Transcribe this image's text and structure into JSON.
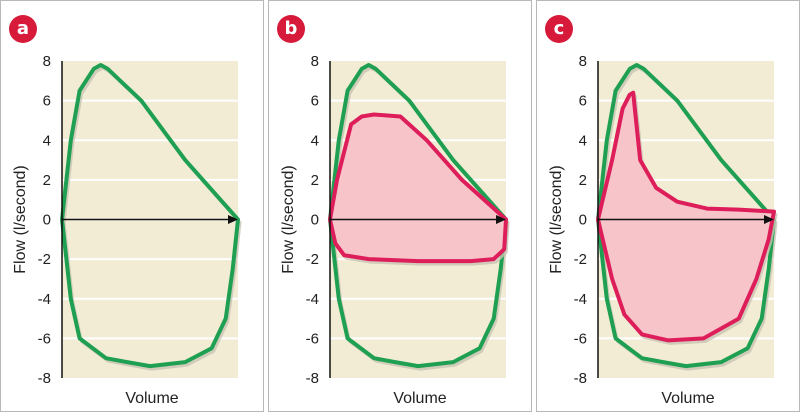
{
  "colors": {
    "plot_bg": "#f1ecd3",
    "grid": "#ffffff",
    "badge": "#d7193a",
    "normal_loop": "#1f9f52",
    "abnormal_loop": "#dd1e5a",
    "abnormal_fill": "#f7c5c9",
    "axis": "#111111"
  },
  "panels": [
    {
      "letter": "a"
    },
    {
      "letter": "b"
    },
    {
      "letter": "c"
    }
  ],
  "chart_data": [
    {
      "type": "line",
      "panel": "a",
      "xlabel": "Volume",
      "ylabel": "Flow (l/second)",
      "ylim": [
        -8,
        8
      ],
      "xlim": [
        0,
        100
      ],
      "y_ticks": [
        8,
        6,
        4,
        2,
        0,
        -2,
        -4,
        -6,
        -8
      ],
      "y_tick_labels": [
        "8",
        "6",
        "4",
        "2",
        "0",
        "-2",
        "-4",
        "-6",
        "-8"
      ],
      "x_ticks_shown": false,
      "grid": true,
      "series": [
        {
          "kind": "normal",
          "fill": false,
          "x": [
            0,
            5,
            10,
            18,
            22,
            26,
            45,
            70,
            100,
            97,
            93,
            85,
            70,
            50,
            37,
            25,
            10,
            5,
            0
          ],
          "y": [
            0,
            4,
            6.5,
            7.6,
            7.8,
            7.6,
            6,
            3,
            0,
            -2.5,
            -5,
            -6.5,
            -7.2,
            -7.4,
            -7.2,
            -7,
            -6,
            -4,
            0
          ]
        }
      ],
      "arrow": {
        "from": [
          0,
          0
        ],
        "to": [
          100,
          0
        ]
      }
    },
    {
      "type": "line",
      "panel": "b",
      "xlabel": "Volume",
      "ylabel": "Flow (l/second)",
      "ylim": [
        -8,
        8
      ],
      "xlim": [
        0,
        100
      ],
      "y_ticks": [
        8,
        6,
        4,
        2,
        0,
        -2,
        -4,
        -6,
        -8
      ],
      "y_tick_labels": [
        "8",
        "6",
        "4",
        "2",
        "0",
        "-2",
        "-4",
        "-6",
        "-8"
      ],
      "x_ticks_shown": false,
      "grid": true,
      "series": [
        {
          "kind": "normal",
          "fill": false,
          "x": [
            0,
            5,
            10,
            18,
            22,
            26,
            45,
            70,
            100,
            97,
            93,
            85,
            70,
            50,
            37,
            25,
            10,
            5,
            0
          ],
          "y": [
            0,
            4,
            6.5,
            7.6,
            7.8,
            7.6,
            6,
            3,
            0,
            -2.5,
            -5,
            -6.5,
            -7.2,
            -7.4,
            -7.2,
            -7,
            -6,
            -4,
            0
          ]
        },
        {
          "kind": "abnormal",
          "fill": true,
          "x": [
            0,
            4,
            12,
            18,
            25,
            40,
            55,
            75,
            100,
            99,
            93,
            80,
            50,
            22,
            8,
            3,
            0
          ],
          "y": [
            0,
            2,
            4.8,
            5.2,
            5.3,
            5.2,
            4,
            2,
            0,
            -1.5,
            -2,
            -2.1,
            -2.1,
            -2,
            -1.8,
            -1.2,
            0
          ]
        }
      ],
      "arrow": {
        "from": [
          0,
          0
        ],
        "to": [
          100,
          0
        ]
      }
    },
    {
      "type": "line",
      "panel": "c",
      "xlabel": "Volume",
      "ylabel": "Flow (l/second)",
      "ylim": [
        -8,
        8
      ],
      "xlim": [
        0,
        100
      ],
      "y_ticks": [
        8,
        6,
        4,
        2,
        0,
        -2,
        -4,
        -6,
        -8
      ],
      "y_tick_labels": [
        "8",
        "6",
        "4",
        "2",
        "0",
        "-2",
        "-4",
        "-6",
        "-8"
      ],
      "x_ticks_shown": false,
      "grid": true,
      "series": [
        {
          "kind": "normal",
          "fill": false,
          "x": [
            0,
            5,
            10,
            18,
            22,
            26,
            45,
            70,
            100,
            97,
            93,
            85,
            70,
            50,
            37,
            25,
            10,
            5,
            0
          ],
          "y": [
            0,
            4,
            6.5,
            7.6,
            7.8,
            7.6,
            6,
            3,
            0,
            -2.5,
            -5,
            -6.5,
            -7.2,
            -7.4,
            -7.2,
            -7,
            -6,
            -4,
            0
          ]
        },
        {
          "kind": "abnormal",
          "fill": true,
          "x": [
            0,
            8,
            14,
            18,
            20,
            21,
            24,
            33,
            45,
            62,
            80,
            100,
            97,
            90,
            80,
            60,
            40,
            25,
            15,
            8,
            0
          ],
          "y": [
            0,
            3,
            5.6,
            6.3,
            6.4,
            5.5,
            3,
            1.6,
            0.9,
            0.55,
            0.5,
            0.4,
            -1,
            -3,
            -5,
            -6,
            -6.1,
            -5.8,
            -4.8,
            -3,
            0
          ]
        }
      ],
      "arrow": {
        "from": [
          0,
          0
        ],
        "to": [
          100,
          0
        ]
      }
    }
  ]
}
